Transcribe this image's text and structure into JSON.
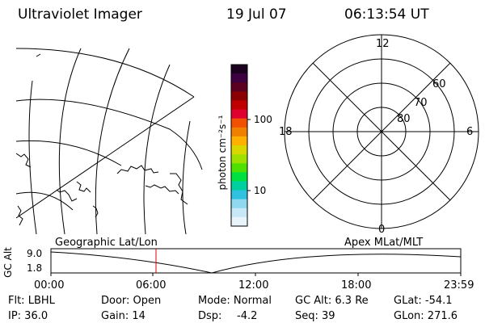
{
  "header": {
    "title": "Ultraviolet Imager",
    "date": "19 Jul 07",
    "time": "06:13:54 UT"
  },
  "colorbar": {
    "unit_label": "photon cm⁻²s⁻¹",
    "ticks": [
      "100",
      "10"
    ],
    "colors": [
      "#1b0020",
      "#3d0040",
      "#5a0020",
      "#8b0000",
      "#c00000",
      "#e00030",
      "#f05000",
      "#f08000",
      "#ffb000",
      "#d8d800",
      "#a0e000",
      "#50e000",
      "#00e040",
      "#00d0a0",
      "#30c0e0",
      "#90d8f0",
      "#c8e8f8",
      "#e8f4fa"
    ]
  },
  "polar": {
    "clock_labels": {
      "top": "12",
      "left": "18",
      "right": "6",
      "bottom": "0"
    },
    "lat_labels": [
      "60",
      "70",
      "80"
    ]
  },
  "timeline": {
    "left_label": "Geographic Lat/Lon",
    "right_label": "Apex MLat/MLT",
    "y_axis_label": "GC Alt",
    "y_ticks": [
      "9.0",
      "1.8"
    ],
    "x_ticks": [
      "00:00",
      "06:00",
      "12:00",
      "18:00",
      "23:59"
    ],
    "cursor_time": "06:13:54"
  },
  "status": {
    "flt": "Flt: LBHL",
    "ip": "IP: 36.0",
    "door": "Door: Open",
    "gain": "Gain: 14",
    "mode": "Mode: Normal",
    "dsp": "Dsp:",
    "dsp_value": "-4.2",
    "gc_alt": "GC Alt: 6.3 Re",
    "seq": "Seq: 39",
    "glat": "GLat: -54.1",
    "glon": "GLon: 271.6"
  }
}
